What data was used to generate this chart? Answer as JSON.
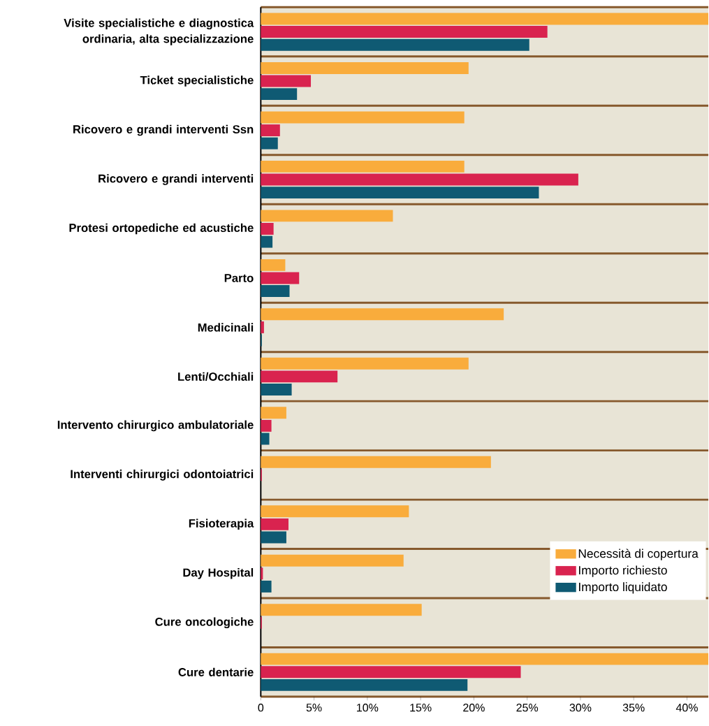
{
  "chart_data": {
    "type": "bar",
    "orientation": "horizontal",
    "categories": [
      "Visite specialistiche e diagnostica ordinaria, alta specializzazione",
      "Ticket specialistiche",
      "Ricovero e grandi interventi Ssn",
      "Ricovero e grandi interventi",
      "Protesi ortopediche ed acustiche",
      "Parto",
      "Medicinali",
      "Lenti/Occhiali",
      "Intervento chirurgico ambulatoriale",
      "Interventi chirurgici odontoiatrici",
      "Fisioterapia",
      "Day Hospital",
      "Cure oncologiche",
      "Cure dentarie"
    ],
    "series": [
      {
        "name": "Necessità di copertura",
        "color": "#f9ac3c",
        "values": [
          42,
          19.5,
          19.1,
          19.1,
          12.4,
          2.3,
          22.8,
          19.5,
          2.4,
          21.6,
          13.9,
          13.4,
          15.1,
          42
        ]
      },
      {
        "name": "Importo richiesto",
        "color": "#d9234f",
        "values": [
          26.9,
          4.7,
          1.8,
          29.8,
          1.2,
          3.6,
          0.3,
          7.2,
          1.0,
          0.1,
          2.6,
          0.2,
          0.1,
          24.4
        ]
      },
      {
        "name": "Importo liquidato",
        "color": "#0f5a73",
        "values": [
          25.2,
          3.4,
          1.6,
          26.1,
          1.1,
          2.7,
          0.1,
          2.9,
          0.8,
          0,
          2.4,
          1.0,
          0,
          19.4
        ]
      }
    ],
    "xlim": [
      0,
      42
    ],
    "xticks": [
      0,
      {
        "value": 5,
        "label": "5%"
      },
      {
        "value": 10,
        "label": "10%"
      },
      {
        "value": 15,
        "label": "15%"
      },
      {
        "value": 20,
        "label": "20%"
      },
      {
        "value": 25,
        "label": "25%"
      },
      {
        "value": 30,
        "label": "30%"
      },
      {
        "value": 35,
        "label": "35%"
      },
      {
        "value": 40,
        "label": "40%"
      }
    ],
    "grid": "y",
    "legend": "bottom right"
  }
}
